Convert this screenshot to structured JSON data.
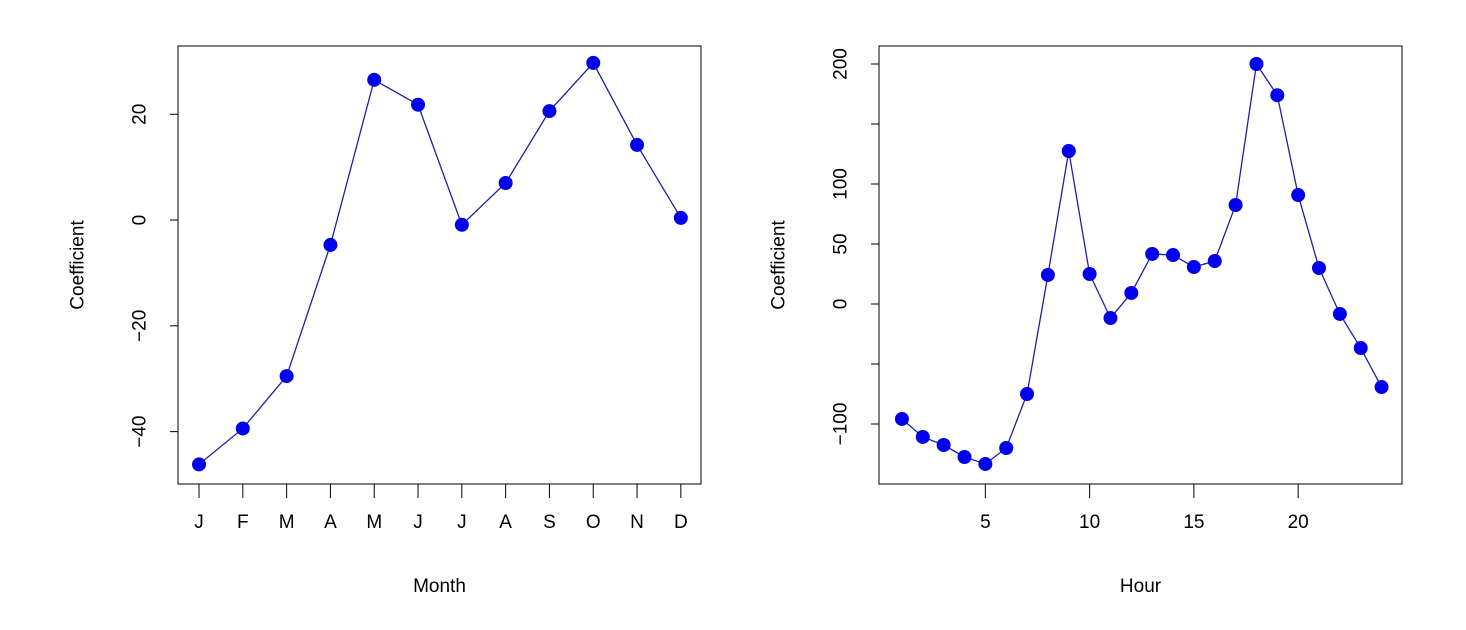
{
  "chart_data": [
    {
      "type": "line",
      "title": "",
      "xlabel": "Month",
      "ylabel": "Coefficient",
      "categories": [
        "J",
        "F",
        "M",
        "A",
        "M",
        "J",
        "J",
        "A",
        "S",
        "O",
        "N",
        "D"
      ],
      "x": [
        1,
        2,
        3,
        4,
        5,
        6,
        7,
        8,
        9,
        10,
        11,
        12
      ],
      "values": [
        -46.2,
        -39.4,
        -29.5,
        -4.7,
        26.5,
        21.8,
        -0.9,
        7.0,
        20.6,
        29.7,
        14.2,
        0.4
      ],
      "xlim": [
        0.52,
        12.46
      ],
      "ylim": [
        -49.9,
        32.9
      ],
      "yticks": [
        -40,
        -20,
        0,
        20
      ],
      "ytick_labels": [
        "−40",
        "−20",
        "0",
        "20"
      ],
      "grid": false,
      "color": "#0000ee",
      "line_color": "#2020a0"
    },
    {
      "type": "line",
      "title": "",
      "xlabel": "Hour",
      "ylabel": "Coefficient",
      "x": [
        1,
        2,
        3,
        4,
        5,
        6,
        7,
        8,
        9,
        10,
        11,
        12,
        13,
        14,
        15,
        16,
        17,
        18,
        19,
        20,
        21,
        22,
        23,
        24
      ],
      "values": [
        -95.8,
        -110.8,
        -117.5,
        -127.5,
        -133.3,
        -120,
        -75,
        24.2,
        127.5,
        25,
        -11.7,
        9.2,
        41.7,
        40.8,
        30.8,
        35.8,
        82.5,
        200,
        174,
        90.8,
        30,
        -8.3,
        -36.7,
        -69.2
      ],
      "xlim": [
        -0.1,
        24.98
      ],
      "ylim": [
        -150,
        215
      ],
      "xticks": [
        5,
        10,
        15,
        20
      ],
      "xtick_labels": [
        "5",
        "10",
        "15",
        "20"
      ],
      "yticks": [
        -100,
        -50,
        0,
        50,
        100,
        150,
        200
      ],
      "ytick_labels": [
        "−100",
        "",
        "0",
        "50",
        "100",
        "",
        "200"
      ],
      "grid": false,
      "color": "#0000ee",
      "line_color": "#2020a0"
    }
  ]
}
